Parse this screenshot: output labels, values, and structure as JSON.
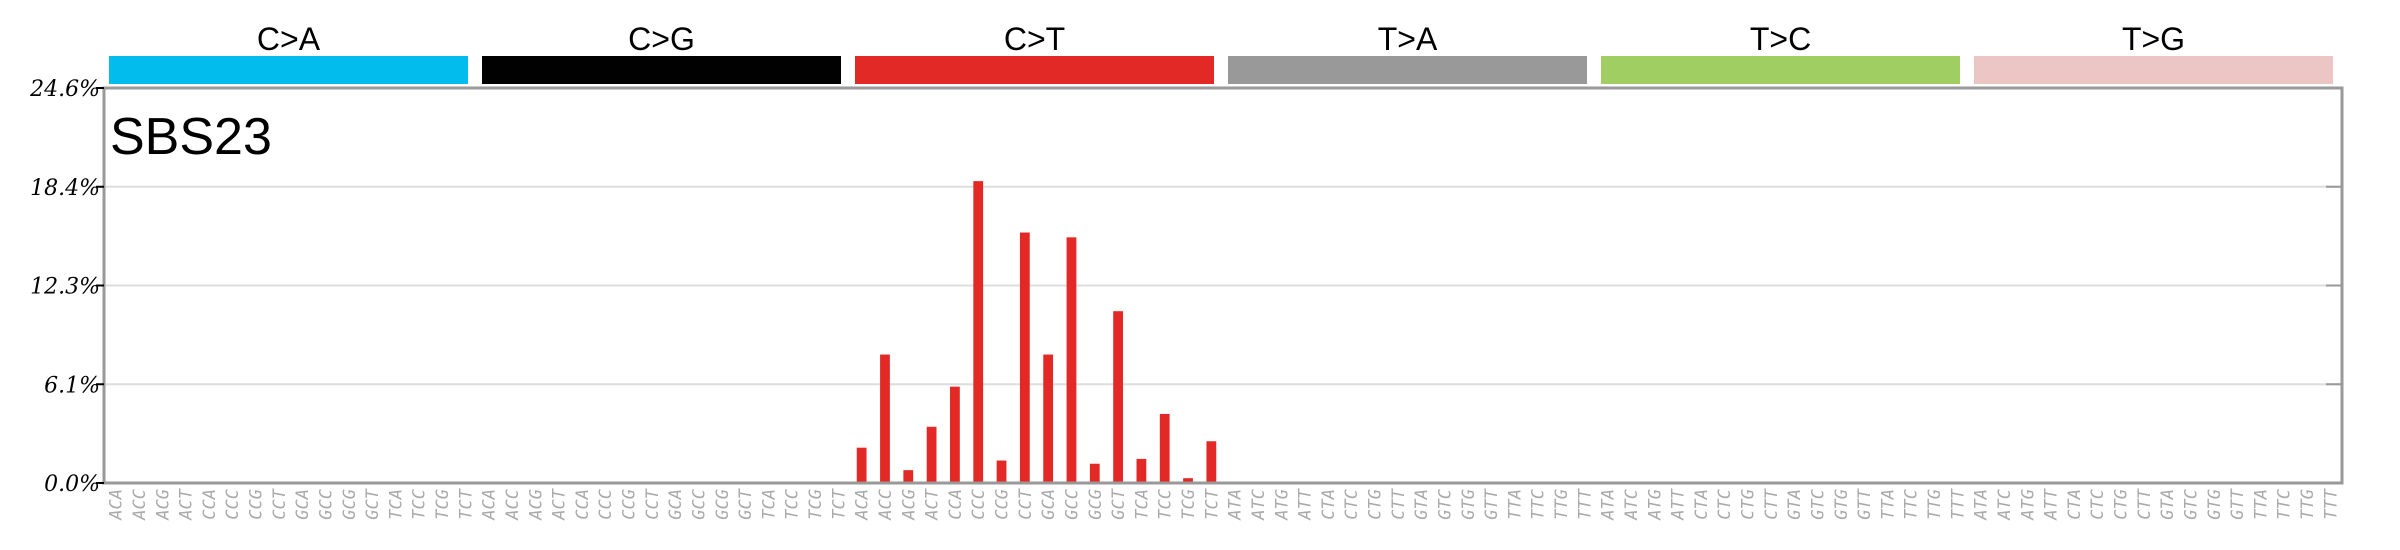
{
  "chart_data": {
    "type": "bar",
    "title": "SBS23",
    "ylim": [
      0,
      24.6
    ],
    "yticks": [
      "0.0%",
      "6.1%",
      "12.3%",
      "18.4%",
      "24.6%"
    ],
    "groups": [
      {
        "label": "C>A",
        "color": "#03bcee"
      },
      {
        "label": "C>G",
        "color": "#010101"
      },
      {
        "label": "C>T",
        "color": "#e32926"
      },
      {
        "label": "T>A",
        "color": "#999999"
      },
      {
        "label": "T>C",
        "color": "#a1ce63"
      },
      {
        "label": "T>G",
        "color": "#ebc6c4"
      }
    ],
    "categories": [
      "ACA",
      "ACC",
      "ACG",
      "ACT",
      "CCA",
      "CCC",
      "CCG",
      "CCT",
      "GCA",
      "GCC",
      "GCG",
      "GCT",
      "TCA",
      "TCC",
      "TCG",
      "TCT",
      "ACA",
      "ACC",
      "ACG",
      "ACT",
      "CCA",
      "CCC",
      "CCG",
      "CCT",
      "GCA",
      "GCC",
      "GCG",
      "GCT",
      "TCA",
      "TCC",
      "TCG",
      "TCT",
      "ACA",
      "ACC",
      "ACG",
      "ACT",
      "CCA",
      "CCC",
      "CCG",
      "CCT",
      "GCA",
      "GCC",
      "GCG",
      "GCT",
      "TCA",
      "TCC",
      "TCG",
      "TCT",
      "ATA",
      "ATC",
      "ATG",
      "ATT",
      "CTA",
      "CTC",
      "CTG",
      "CTT",
      "GTA",
      "GTC",
      "GTG",
      "GTT",
      "TTA",
      "TTC",
      "TTG",
      "TTT",
      "ATA",
      "ATC",
      "ATG",
      "ATT",
      "CTA",
      "CTC",
      "CTG",
      "CTT",
      "GTA",
      "GTC",
      "GTG",
      "GTT",
      "TTA",
      "TTC",
      "TTG",
      "TTT",
      "ATA",
      "ATC",
      "ATG",
      "ATT",
      "CTA",
      "CTC",
      "CTG",
      "CTT",
      "GTA",
      "GTC",
      "GTG",
      "GTT",
      "TTA",
      "TTC",
      "TTG",
      "TTT"
    ],
    "values": [
      0.02,
      0.03,
      0.02,
      0.02,
      0.03,
      0.04,
      0.02,
      0.03,
      0.02,
      0.03,
      0.02,
      0.04,
      0.05,
      0.03,
      0.04,
      0.02,
      0.01,
      0.02,
      0.01,
      0.02,
      0.05,
      0.02,
      0.08,
      0.03,
      0.04,
      0.02,
      0.03,
      0.02,
      0.05,
      0.04,
      0.02,
      0.03,
      2.2,
      8.0,
      0.8,
      3.5,
      6.0,
      18.8,
      1.4,
      15.6,
      8.0,
      15.3,
      1.2,
      10.7,
      1.5,
      4.3,
      0.3,
      2.6,
      0.02,
      0.03,
      0.02,
      0.02,
      0.02,
      0.02,
      0.02,
      0.02,
      0.02,
      0.02,
      0.02,
      0.02,
      0.02,
      0.02,
      0.02,
      0.02,
      0.02,
      0.02,
      0.02,
      0.02,
      0.02,
      0.02,
      0.02,
      0.02,
      0.02,
      0.02,
      0.02,
      0.02,
      0.02,
      0.02,
      0.02,
      0.02,
      0.02,
      0.02,
      0.02,
      0.02,
      0.02,
      0.02,
      0.02,
      0.02,
      0.02,
      0.02,
      0.02,
      0.02,
      0.02,
      0.02,
      0.02,
      0.02
    ],
    "grid": true
  }
}
